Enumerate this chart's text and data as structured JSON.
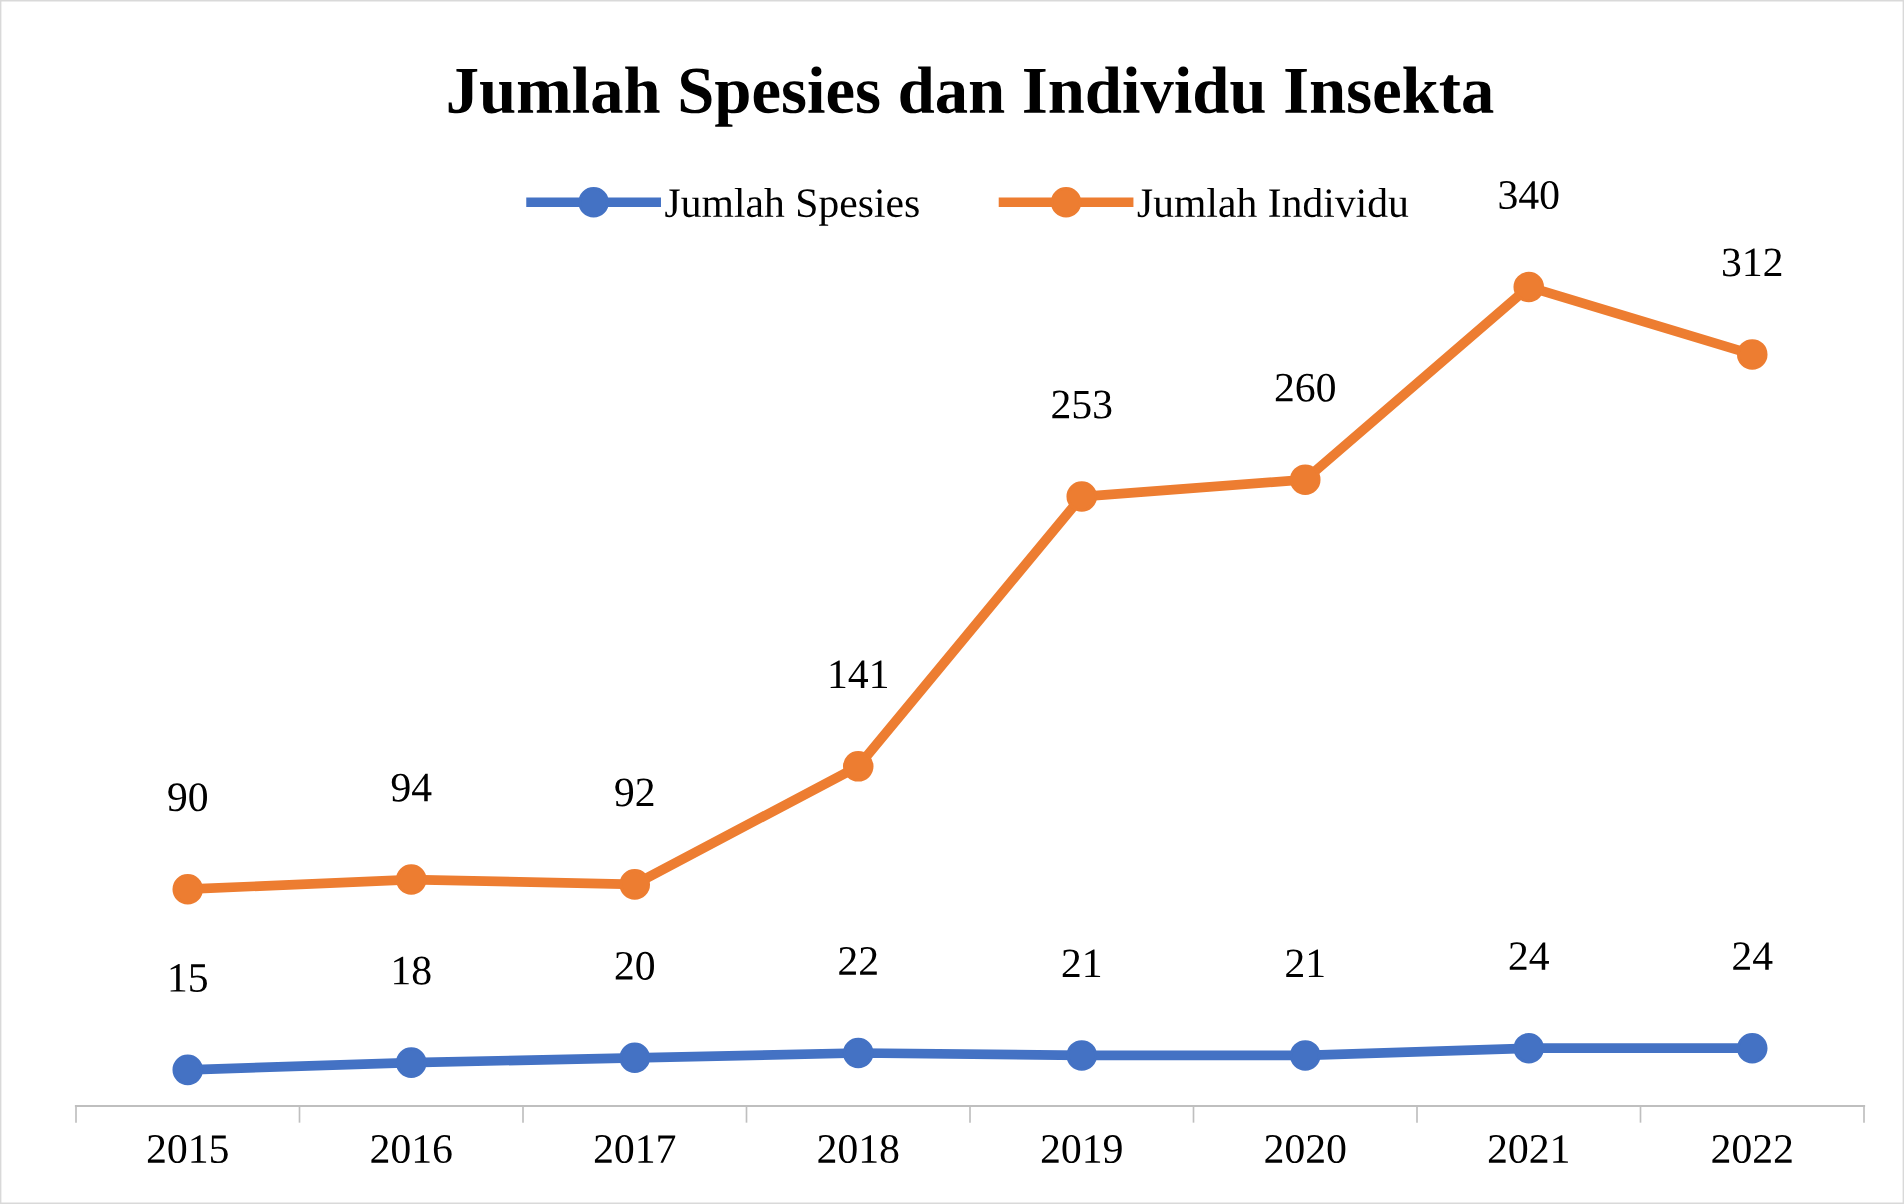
{
  "chart_data": {
    "type": "line",
    "title": "Jumlah Spesies dan Individu Insekta",
    "categories": [
      "2015",
      "2016",
      "2017",
      "2018",
      "2019",
      "2020",
      "2021",
      "2022"
    ],
    "series": [
      {
        "name": "Jumlah Spesies",
        "color": "#4472c4",
        "values": [
          15,
          18,
          20,
          22,
          21,
          21,
          24,
          24
        ]
      },
      {
        "name": "Jumlah Individu",
        "color": "#ed7d31",
        "values": [
          90,
          94,
          92,
          141,
          253,
          260,
          340,
          312
        ]
      }
    ],
    "data_labels": true,
    "marker": "circle",
    "line_style": "solid",
    "legend": "top",
    "tick_labels": "x"
  }
}
